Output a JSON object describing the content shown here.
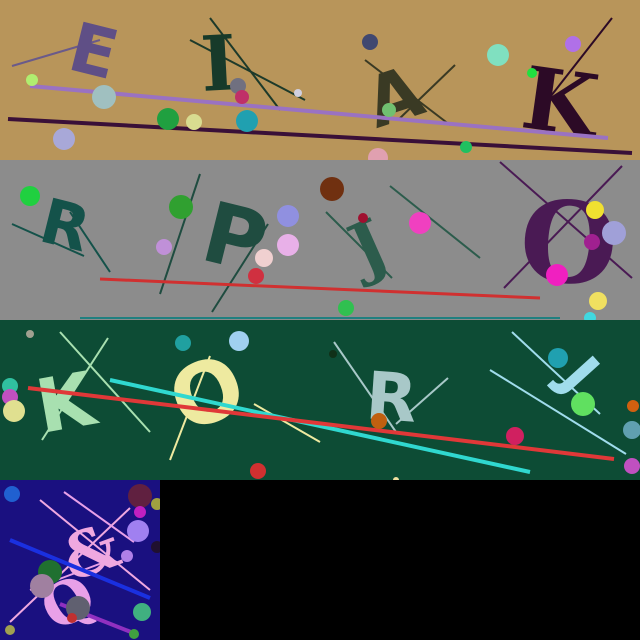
{
  "captchas": [
    {
      "name": "captcha-1",
      "background": "#b8955a",
      "letters": [
        {
          "text": "E",
          "color": "#5f4f86"
        },
        {
          "text": "I",
          "color": "#173a2a"
        },
        {
          "text": "A",
          "color": "#3a3a24"
        },
        {
          "text": "K",
          "color": "#2c0a26"
        }
      ]
    },
    {
      "name": "captcha-2",
      "background": "#8c8c8c",
      "letters": [
        {
          "text": "R",
          "color": "#14524a"
        },
        {
          "text": "P",
          "color": "#1f4c40"
        },
        {
          "text": "J",
          "color": "#2c5c4c"
        },
        {
          "text": "O",
          "color": "#4a1a54"
        }
      ]
    },
    {
      "name": "captcha-3",
      "background": "#0d4c35",
      "letters": [
        {
          "text": "K",
          "color": "#a8e0b0"
        },
        {
          "text": "O",
          "color": "#eeeaa0"
        },
        {
          "text": "R",
          "color": "#a8c8c8"
        },
        {
          "text": "J",
          "color": "#a0dcec"
        }
      ]
    },
    {
      "name": "captcha-4",
      "background": "#1a1080",
      "letters": [
        {
          "text": "&",
          "color": "#f0a8e0"
        },
        {
          "text": "Q",
          "color": "#e8a0e8"
        }
      ]
    }
  ]
}
